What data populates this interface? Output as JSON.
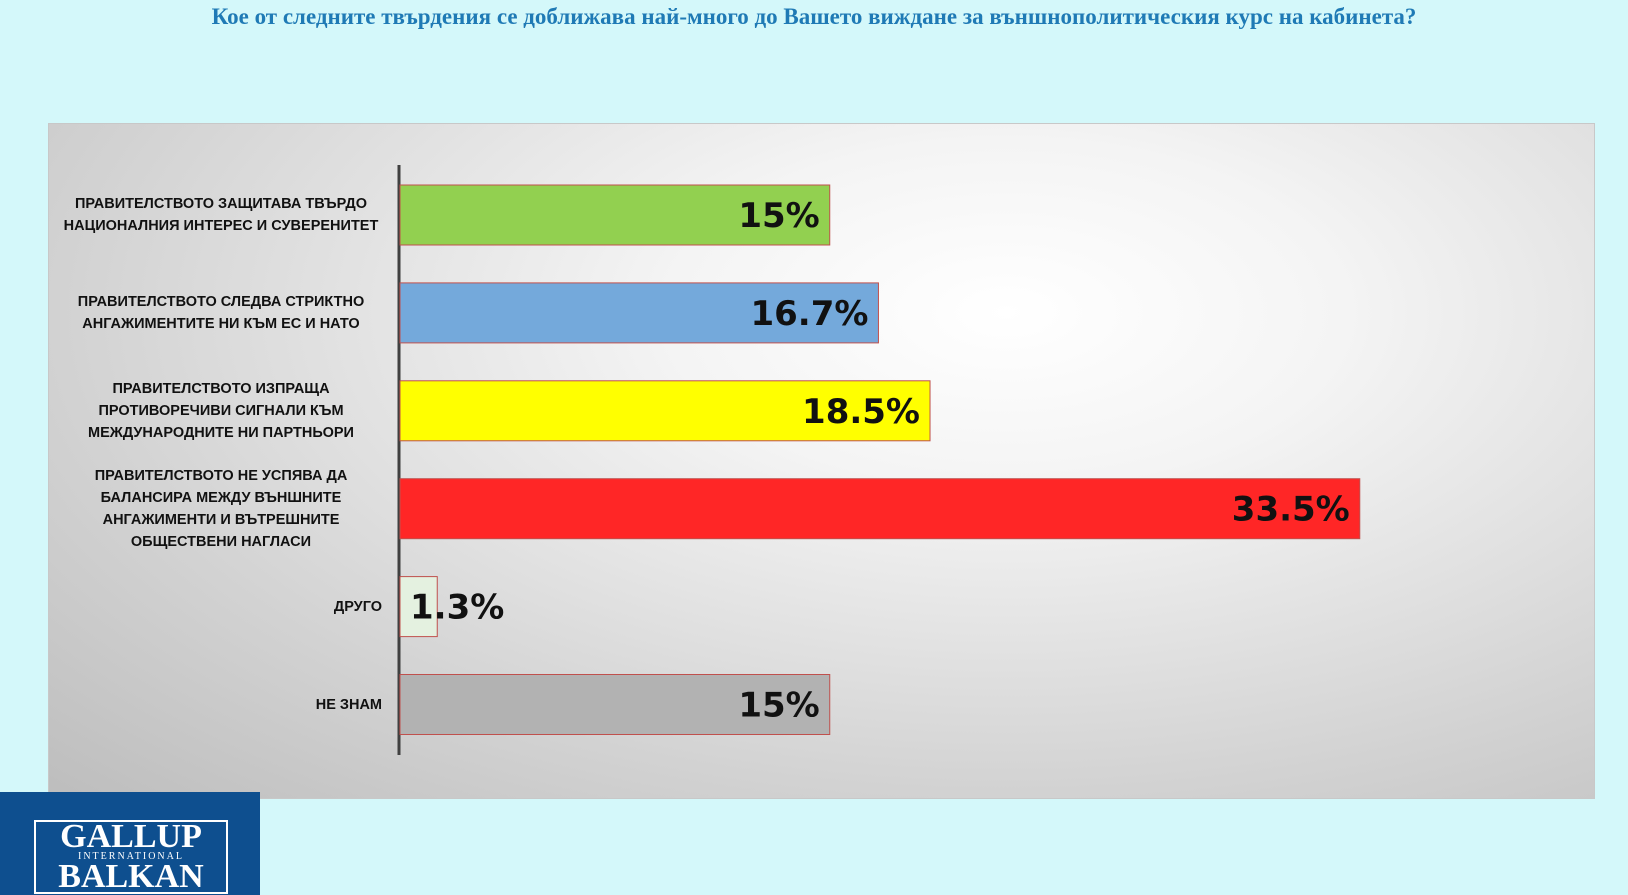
{
  "chart_data": {
    "type": "hbar",
    "title": "Кое от следните твърдения се доближава най-много до Вашето виждане за външнополитическия курс на кабинета?",
    "categories": [
      "ПРАВИТЕЛСТВОТО ЗАЩИТАВА ТВЪРДО НАЦИОНАЛНИЯ ИНТЕРЕС И СУВЕРЕНИТЕТ",
      "ПРАВИТЕЛСТВОТО СЛЕДВА СТРИКТНО АНГАЖИМЕНТИТЕ НИ КЪМ ЕС И НАТО",
      "ПРАВИТЕЛСТВОТО ИЗПРАЩА ПРОТИВОРЕЧИВИ СИГНАЛИ КЪМ МЕЖДУНАРОДНИТЕ НИ ПАРТНЬОРИ",
      "ПРАВИТЕЛСТВОТО НЕ УСПЯВА ДА БАЛАНСИРА МЕЖДУ ВЪНШНИТЕ АНГАЖИМЕНТИ И ВЪТРЕШНИТЕ ОБЩЕСТВЕНИ НАГЛАСИ",
      "ДРУГО",
      "НЕ ЗНАМ"
    ],
    "values": [
      15,
      16.7,
      18.5,
      33.5,
      1.3,
      15
    ],
    "value_labels": [
      "15%",
      "16.7%",
      "18.5%",
      "33.5%",
      "1.3%",
      "15%"
    ],
    "colors": [
      "#92d050",
      "#74a9db",
      "#ffff00",
      "#ff2626",
      "#e4f1e0",
      "#b2b2b2"
    ],
    "xlim": [
      0,
      40
    ]
  },
  "logo": {
    "line1": "GALLUP",
    "line2": "INTERNATIONAL",
    "line3": "BALKAN"
  }
}
